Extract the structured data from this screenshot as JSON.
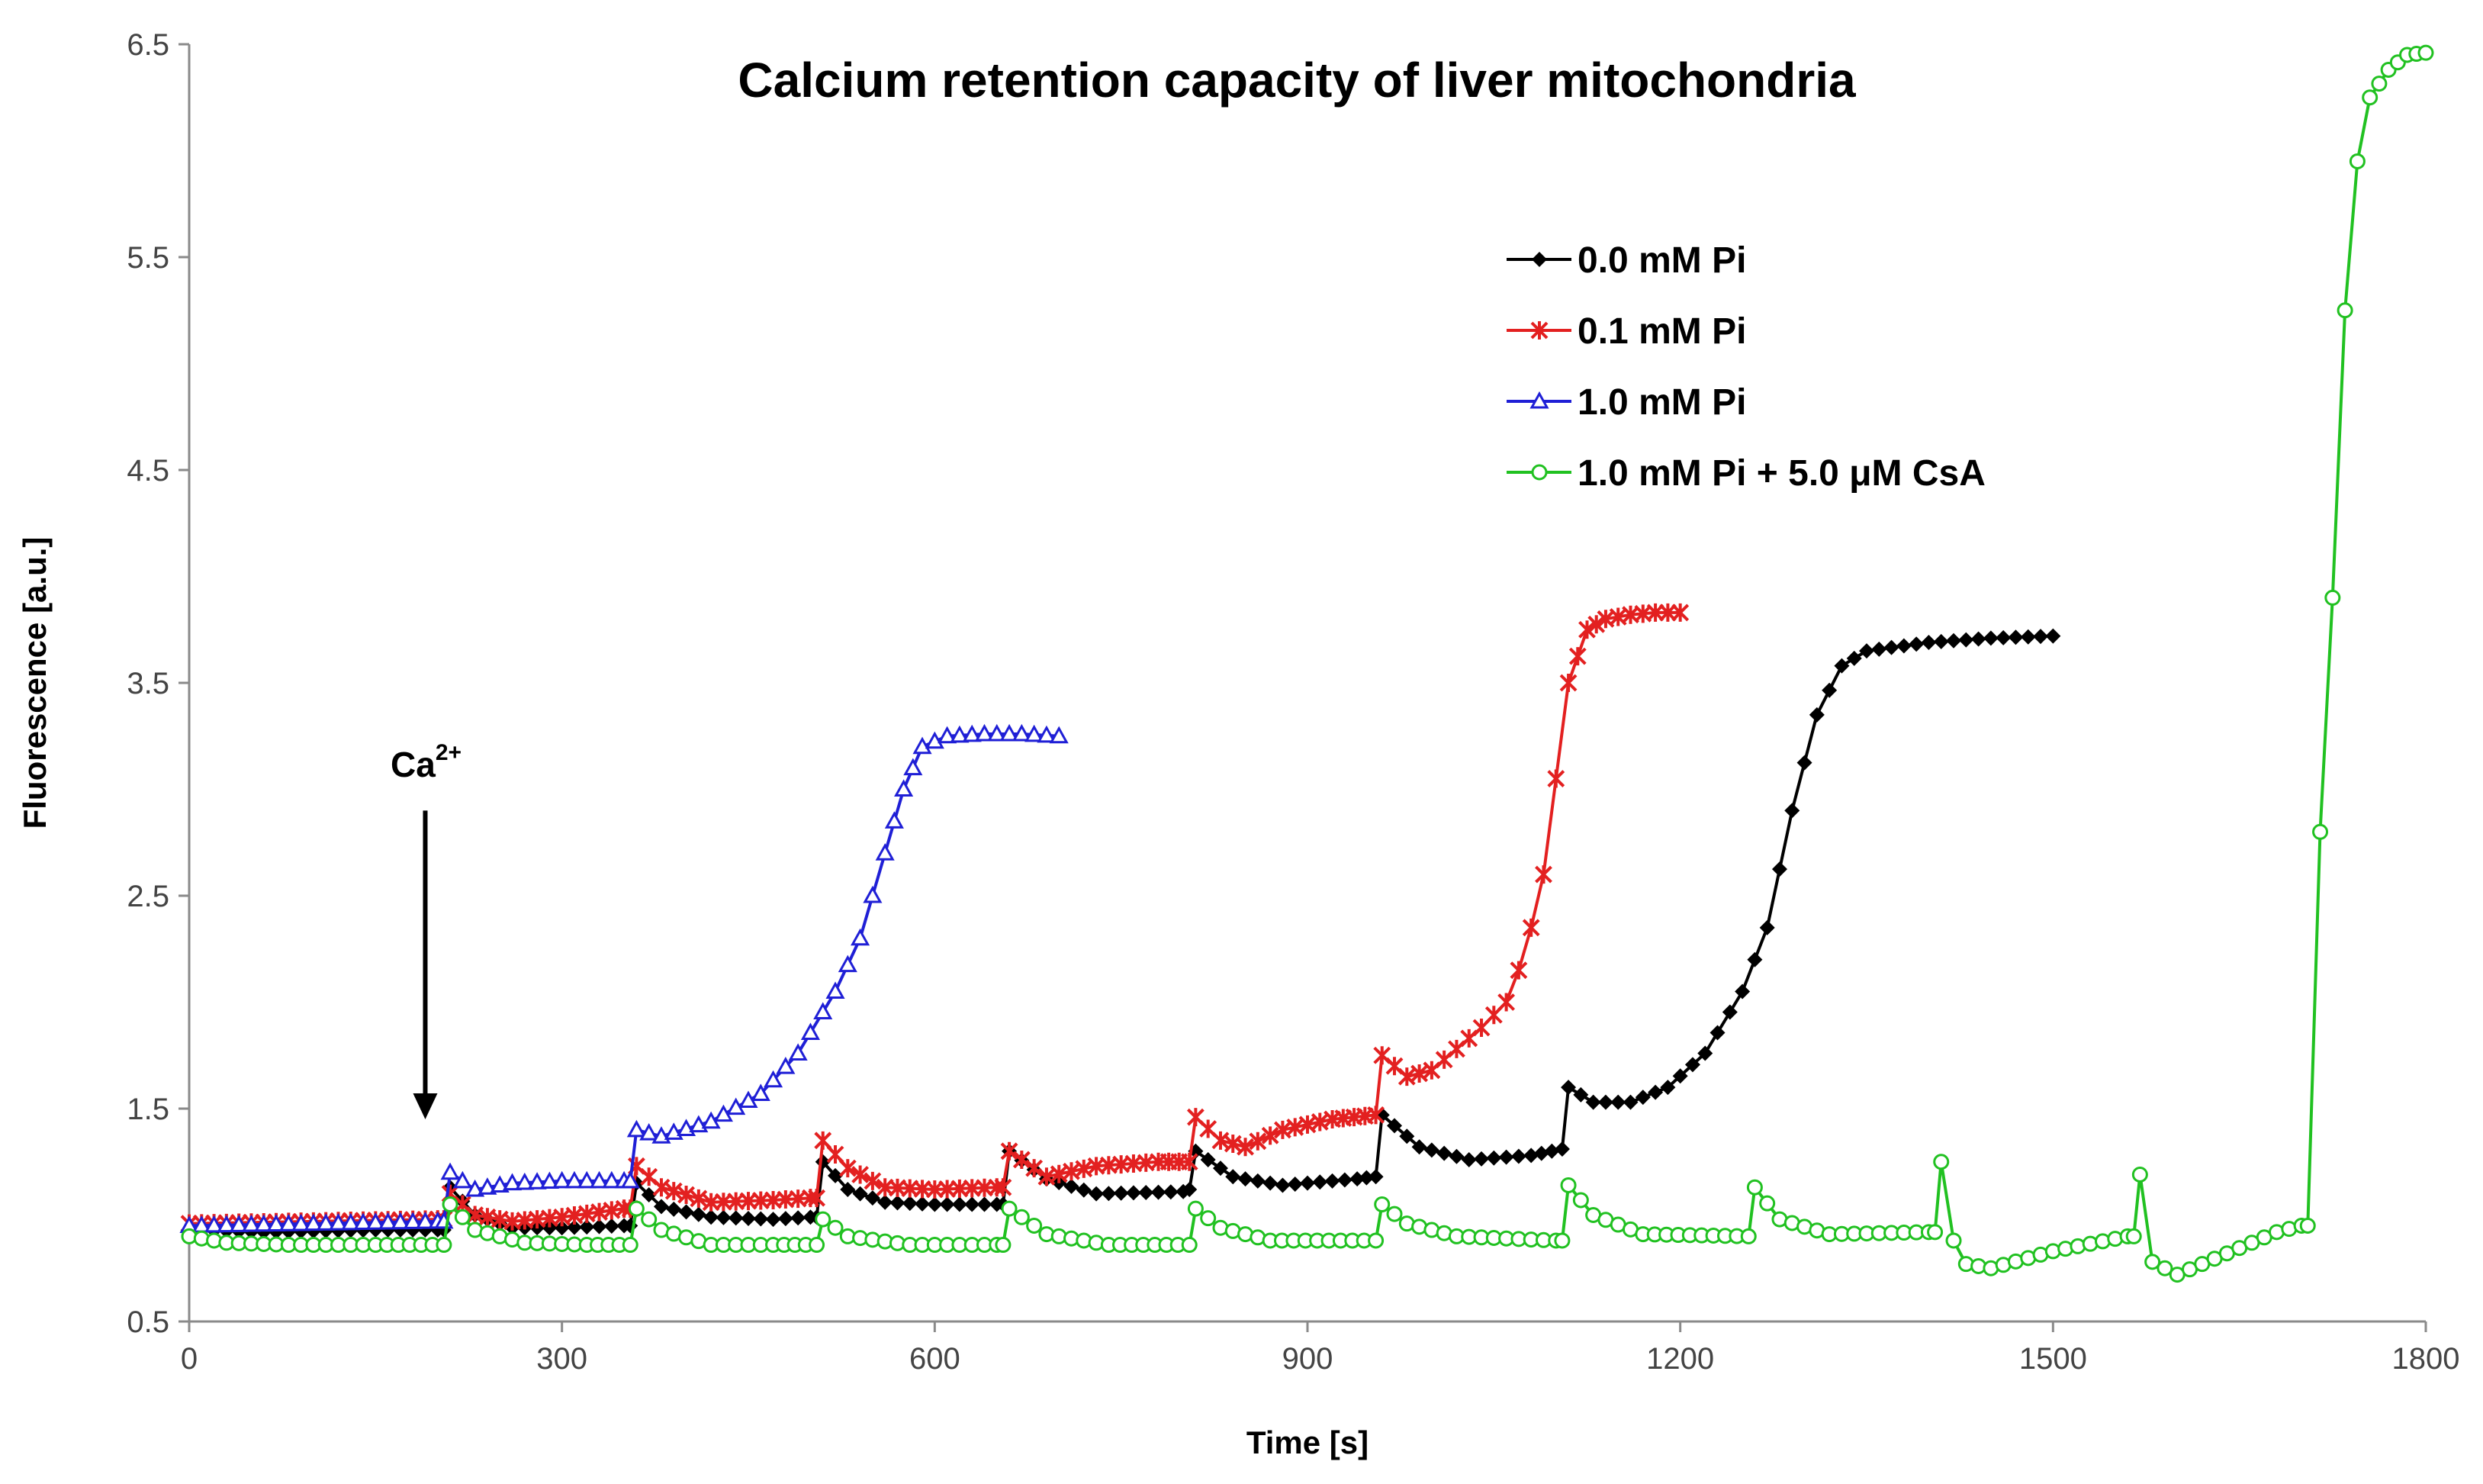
{
  "chart_data": {
    "type": "line",
    "title": "Calcium retention capacity of liver mitochondria",
    "xlabel": "Time [s]",
    "ylabel": "Fluorescence [a.u.]",
    "xlim": [
      0,
      1800
    ],
    "ylim": [
      0.5,
      6.5
    ],
    "xticks": [
      0,
      300,
      600,
      900,
      1200,
      1500,
      1800
    ],
    "yticks": [
      0.5,
      1.5,
      2.5,
      3.5,
      4.5,
      5.5,
      6.5
    ],
    "grid": false,
    "legend_position": "top-right",
    "annotation": {
      "text": "Ca",
      "superscript": "2+",
      "x": 190,
      "y_from": 2.9,
      "y_to": 1.45
    },
    "series": [
      {
        "name": "0.0 mM Pi",
        "color": "#000000",
        "marker": "diamond",
        "points": [
          [
            0,
            0.93
          ],
          [
            60,
            0.92
          ],
          [
            150,
            0.93
          ],
          [
            200,
            0.93
          ],
          [
            205,
            0.93
          ],
          [
            210,
            1.13
          ],
          [
            230,
            1.0
          ],
          [
            260,
            0.94
          ],
          [
            300,
            0.94
          ],
          [
            350,
            0.95
          ],
          [
            355,
            0.95
          ],
          [
            360,
            1.15
          ],
          [
            380,
            1.04
          ],
          [
            420,
            0.99
          ],
          [
            470,
            0.98
          ],
          [
            500,
            0.99
          ],
          [
            505,
            0.99
          ],
          [
            510,
            1.25
          ],
          [
            530,
            1.12
          ],
          [
            560,
            1.06
          ],
          [
            600,
            1.05
          ],
          [
            650,
            1.05
          ],
          [
            655,
            1.05
          ],
          [
            660,
            1.3
          ],
          [
            690,
            1.17
          ],
          [
            730,
            1.1
          ],
          [
            800,
            1.11
          ],
          [
            805,
            1.12
          ],
          [
            810,
            1.3
          ],
          [
            840,
            1.18
          ],
          [
            880,
            1.14
          ],
          [
            940,
            1.17
          ],
          [
            955,
            1.18
          ],
          [
            960,
            1.47
          ],
          [
            990,
            1.32
          ],
          [
            1030,
            1.26
          ],
          [
            1080,
            1.28
          ],
          [
            1105,
            1.31
          ],
          [
            1110,
            1.6
          ],
          [
            1130,
            1.53
          ],
          [
            1160,
            1.53
          ],
          [
            1190,
            1.6
          ],
          [
            1220,
            1.76
          ],
          [
            1250,
            2.05
          ],
          [
            1270,
            2.35
          ],
          [
            1290,
            2.9
          ],
          [
            1310,
            3.35
          ],
          [
            1330,
            3.58
          ],
          [
            1350,
            3.65
          ],
          [
            1400,
            3.69
          ],
          [
            1450,
            3.71
          ],
          [
            1500,
            3.72
          ]
        ]
      },
      {
        "name": "0.1 mM Pi",
        "color": "#e32020",
        "marker": "star",
        "points": [
          [
            0,
            0.96
          ],
          [
            100,
            0.97
          ],
          [
            200,
            0.98
          ],
          [
            205,
            0.98
          ],
          [
            210,
            1.1
          ],
          [
            230,
            1.0
          ],
          [
            260,
            0.97
          ],
          [
            300,
            0.99
          ],
          [
            350,
            1.03
          ],
          [
            355,
            1.03
          ],
          [
            360,
            1.23
          ],
          [
            380,
            1.13
          ],
          [
            420,
            1.06
          ],
          [
            470,
            1.07
          ],
          [
            500,
            1.08
          ],
          [
            505,
            1.08
          ],
          [
            510,
            1.35
          ],
          [
            530,
            1.22
          ],
          [
            560,
            1.13
          ],
          [
            600,
            1.12
          ],
          [
            650,
            1.13
          ],
          [
            655,
            1.13
          ],
          [
            660,
            1.3
          ],
          [
            690,
            1.18
          ],
          [
            730,
            1.23
          ],
          [
            780,
            1.25
          ],
          [
            805,
            1.25
          ],
          [
            810,
            1.46
          ],
          [
            830,
            1.35
          ],
          [
            850,
            1.32
          ],
          [
            880,
            1.4
          ],
          [
            920,
            1.45
          ],
          [
            955,
            1.47
          ],
          [
            960,
            1.75
          ],
          [
            980,
            1.65
          ],
          [
            1000,
            1.68
          ],
          [
            1020,
            1.78
          ],
          [
            1040,
            1.88
          ],
          [
            1060,
            2.0
          ],
          [
            1070,
            2.15
          ],
          [
            1080,
            2.35
          ],
          [
            1090,
            2.6
          ],
          [
            1100,
            3.05
          ],
          [
            1110,
            3.5
          ],
          [
            1125,
            3.75
          ],
          [
            1140,
            3.8
          ],
          [
            1160,
            3.82
          ],
          [
            1180,
            3.83
          ],
          [
            1200,
            3.83
          ]
        ]
      },
      {
        "name": "1.0 mM Pi",
        "color": "#1f1fd6",
        "marker": "triangle",
        "points": [
          [
            0,
            0.95
          ],
          [
            100,
            0.96
          ],
          [
            200,
            0.97
          ],
          [
            205,
            0.97
          ],
          [
            210,
            1.2
          ],
          [
            230,
            1.12
          ],
          [
            260,
            1.15
          ],
          [
            300,
            1.16
          ],
          [
            350,
            1.16
          ],
          [
            355,
            1.16
          ],
          [
            360,
            1.4
          ],
          [
            380,
            1.37
          ],
          [
            420,
            1.44
          ],
          [
            460,
            1.57
          ],
          [
            490,
            1.76
          ],
          [
            520,
            2.05
          ],
          [
            540,
            2.3
          ],
          [
            560,
            2.7
          ],
          [
            575,
            3.0
          ],
          [
            590,
            3.2
          ],
          [
            610,
            3.25
          ],
          [
            640,
            3.26
          ],
          [
            670,
            3.26
          ],
          [
            700,
            3.25
          ]
        ]
      },
      {
        "name": "1.0 mM Pi + 5.0 μM CsA",
        "color": "#21c121",
        "marker": "circle",
        "points": [
          [
            0,
            0.9
          ],
          [
            30,
            0.87
          ],
          [
            80,
            0.86
          ],
          [
            150,
            0.86
          ],
          [
            205,
            0.86
          ],
          [
            210,
            1.05
          ],
          [
            230,
            0.93
          ],
          [
            270,
            0.87
          ],
          [
            320,
            0.86
          ],
          [
            355,
            0.86
          ],
          [
            360,
            1.03
          ],
          [
            380,
            0.93
          ],
          [
            420,
            0.86
          ],
          [
            470,
            0.86
          ],
          [
            505,
            0.86
          ],
          [
            510,
            0.98
          ],
          [
            530,
            0.9
          ],
          [
            580,
            0.86
          ],
          [
            650,
            0.86
          ],
          [
            655,
            0.86
          ],
          [
            660,
            1.03
          ],
          [
            690,
            0.91
          ],
          [
            740,
            0.86
          ],
          [
            805,
            0.86
          ],
          [
            810,
            1.03
          ],
          [
            830,
            0.94
          ],
          [
            870,
            0.88
          ],
          [
            955,
            0.88
          ],
          [
            960,
            1.05
          ],
          [
            980,
            0.96
          ],
          [
            1020,
            0.9
          ],
          [
            1100,
            0.88
          ],
          [
            1105,
            0.88
          ],
          [
            1110,
            1.14
          ],
          [
            1130,
            1.0
          ],
          [
            1170,
            0.91
          ],
          [
            1255,
            0.9
          ],
          [
            1260,
            1.13
          ],
          [
            1280,
            0.98
          ],
          [
            1320,
            0.91
          ],
          [
            1400,
            0.92
          ],
          [
            1405,
            0.92
          ],
          [
            1410,
            1.25
          ],
          [
            1420,
            0.88
          ],
          [
            1430,
            0.77
          ],
          [
            1450,
            0.75
          ],
          [
            1500,
            0.83
          ],
          [
            1560,
            0.9
          ],
          [
            1565,
            0.9
          ],
          [
            1570,
            1.19
          ],
          [
            1580,
            0.78
          ],
          [
            1600,
            0.72
          ],
          [
            1640,
            0.82
          ],
          [
            1680,
            0.92
          ],
          [
            1700,
            0.95
          ],
          [
            1705,
            0.95
          ],
          [
            1715,
            2.8
          ],
          [
            1725,
            3.9
          ],
          [
            1735,
            5.25
          ],
          [
            1745,
            5.95
          ],
          [
            1755,
            6.25
          ],
          [
            1770,
            6.38
          ],
          [
            1785,
            6.45
          ],
          [
            1800,
            6.46
          ]
        ]
      }
    ]
  }
}
